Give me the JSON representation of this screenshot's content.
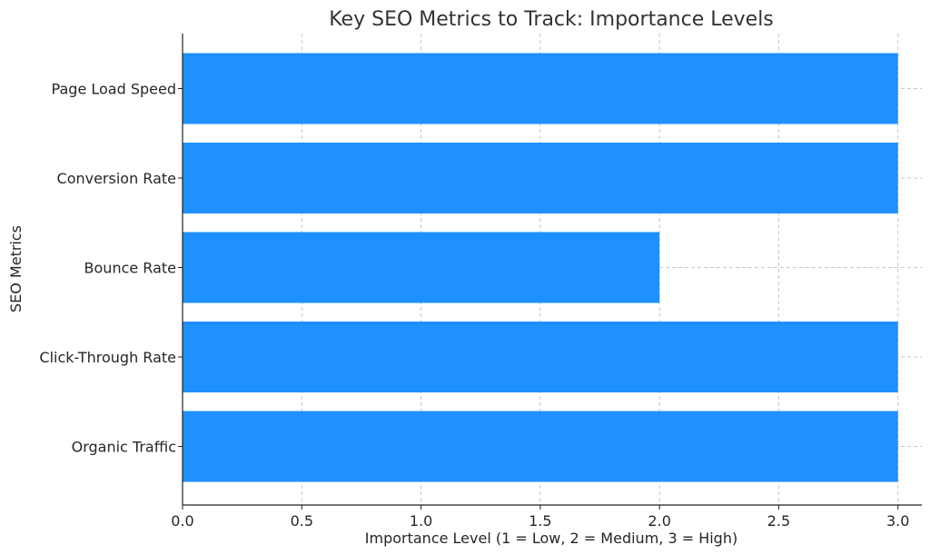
{
  "chart_data": {
    "type": "bar",
    "orientation": "horizontal",
    "title": "Key SEO Metrics to Track: Importance Levels",
    "xlabel": "Importance Level (1 = Low, 2 = Medium, 3 = High)",
    "ylabel": "SEO Metrics",
    "categories": [
      "Organic Traffic",
      "Click-Through Rate",
      "Bounce Rate",
      "Conversion Rate",
      "Page Load Speed"
    ],
    "values": [
      3,
      3,
      2,
      3,
      3
    ],
    "xlim": [
      0,
      3.1
    ],
    "xticks": [
      "0.0",
      "0.5",
      "1.0",
      "1.5",
      "2.0",
      "2.5",
      "3.0"
    ],
    "grid": true,
    "bar_color": "#1e90ff"
  }
}
